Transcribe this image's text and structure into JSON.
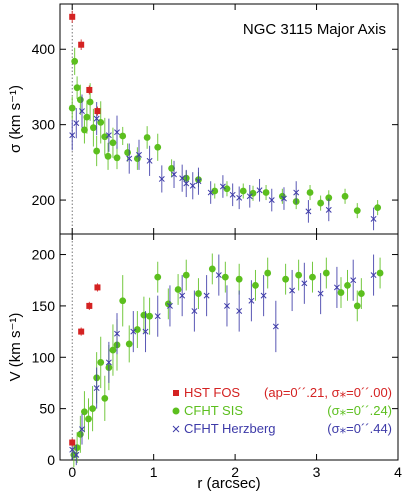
{
  "figure": {
    "colors": {
      "hst": "#d42222",
      "sis": "#5cbf1e",
      "herz": "#3d3aa8",
      "axis": "#000000",
      "dotted": "#555555"
    }
  },
  "chart_data": [
    {
      "type": "scatter",
      "panel": "top",
      "title": "NGC 3115 Major Axis",
      "xlabel": "",
      "ylabel": "σ (km s⁻¹)",
      "xlim": [
        -0.15,
        4
      ],
      "ylim": [
        155,
        460
      ],
      "yticks": [
        200,
        300,
        400
      ],
      "ytick_labels": [
        "200",
        "300",
        "400"
      ],
      "grid": false,
      "series": [
        {
          "name": "HST FOS",
          "marker": "square",
          "color": "#d42222",
          "points": [
            {
              "x": 0.0,
              "y": 443,
              "err": 8
            },
            {
              "x": 0.11,
              "y": 406,
              "err": 7
            },
            {
              "x": 0.21,
              "y": 346,
              "err": 6
            },
            {
              "x": 0.31,
              "y": 318,
              "err": 6
            }
          ]
        },
        {
          "name": "CFHT SIS",
          "marker": "circle",
          "color": "#5cbf1e",
          "points": [
            {
              "x": 0.0,
              "y": 322,
              "err": 15
            },
            {
              "x": 0.03,
              "y": 384,
              "err": 18
            },
            {
              "x": 0.06,
              "y": 349,
              "err": 15
            },
            {
              "x": 0.1,
              "y": 333,
              "err": 20
            },
            {
              "x": 0.15,
              "y": 293,
              "err": 18
            },
            {
              "x": 0.18,
              "y": 310,
              "err": 22
            },
            {
              "x": 0.22,
              "y": 330,
              "err": 25
            },
            {
              "x": 0.26,
              "y": 296,
              "err": 25
            },
            {
              "x": 0.3,
              "y": 265,
              "err": 20
            },
            {
              "x": 0.35,
              "y": 303,
              "err": 28
            },
            {
              "x": 0.4,
              "y": 284,
              "err": 25
            },
            {
              "x": 0.44,
              "y": 258,
              "err": 18
            },
            {
              "x": 0.5,
              "y": 276,
              "err": 20
            },
            {
              "x": 0.55,
              "y": 256,
              "err": 15
            },
            {
              "x": 0.62,
              "y": 285,
              "err": 12
            },
            {
              "x": 0.68,
              "y": 263,
              "err": 12
            },
            {
              "x": 0.8,
              "y": 255,
              "err": 15
            },
            {
              "x": 0.92,
              "y": 283,
              "err": 15
            },
            {
              "x": 1.05,
              "y": 270,
              "err": 18
            },
            {
              "x": 1.22,
              "y": 242,
              "err": 12
            },
            {
              "x": 1.4,
              "y": 229,
              "err": 10
            },
            {
              "x": 1.55,
              "y": 227,
              "err": 10
            },
            {
              "x": 1.75,
              "y": 212,
              "err": 10
            },
            {
              "x": 1.9,
              "y": 215,
              "err": 10
            },
            {
              "x": 2.1,
              "y": 212,
              "err": 10
            },
            {
              "x": 2.22,
              "y": 209,
              "err": 10
            },
            {
              "x": 2.38,
              "y": 210,
              "err": 10
            },
            {
              "x": 2.58,
              "y": 205,
              "err": 10
            },
            {
              "x": 2.75,
              "y": 198,
              "err": 10
            },
            {
              "x": 2.92,
              "y": 210,
              "err": 10
            },
            {
              "x": 3.05,
              "y": 196,
              "err": 10
            },
            {
              "x": 3.15,
              "y": 203,
              "err": 10
            },
            {
              "x": 3.35,
              "y": 205,
              "err": 10
            },
            {
              "x": 3.5,
              "y": 186,
              "err": 10
            },
            {
              "x": 3.75,
              "y": 190,
              "err": 10
            }
          ]
        },
        {
          "name": "CFHT Herzberg",
          "marker": "cross",
          "color": "#3d3aa8",
          "points": [
            {
              "x": 0.0,
              "y": 286,
              "err": 20
            },
            {
              "x": 0.05,
              "y": 302,
              "err": 20
            },
            {
              "x": 0.12,
              "y": 318,
              "err": 22
            },
            {
              "x": 0.3,
              "y": 308,
              "err": 22
            },
            {
              "x": 0.45,
              "y": 286,
              "err": 22
            },
            {
              "x": 0.55,
              "y": 290,
              "err": 22
            },
            {
              "x": 0.7,
              "y": 255,
              "err": 20
            },
            {
              "x": 0.82,
              "y": 260,
              "err": 20
            },
            {
              "x": 0.95,
              "y": 252,
              "err": 20
            },
            {
              "x": 1.1,
              "y": 228,
              "err": 18
            },
            {
              "x": 1.25,
              "y": 234,
              "err": 18
            },
            {
              "x": 1.35,
              "y": 229,
              "err": 18
            },
            {
              "x": 1.4,
              "y": 222,
              "err": 18
            },
            {
              "x": 1.48,
              "y": 219,
              "err": 18
            },
            {
              "x": 1.55,
              "y": 225,
              "err": 18
            },
            {
              "x": 1.7,
              "y": 210,
              "err": 15
            },
            {
              "x": 1.85,
              "y": 218,
              "err": 15
            },
            {
              "x": 1.97,
              "y": 207,
              "err": 15
            },
            {
              "x": 2.05,
              "y": 203,
              "err": 15
            },
            {
              "x": 2.18,
              "y": 205,
              "err": 15
            },
            {
              "x": 2.3,
              "y": 213,
              "err": 15
            },
            {
              "x": 2.45,
              "y": 200,
              "err": 15
            },
            {
              "x": 2.6,
              "y": 202,
              "err": 15
            },
            {
              "x": 2.75,
              "y": 210,
              "err": 15
            },
            {
              "x": 2.9,
              "y": 185,
              "err": 15
            },
            {
              "x": 3.15,
              "y": 187,
              "err": 15
            },
            {
              "x": 3.7,
              "y": 175,
              "err": 15
            }
          ]
        }
      ]
    },
    {
      "type": "scatter",
      "panel": "bottom",
      "title": "",
      "xlabel": "r (arcsec)",
      "ylabel": "V (km s⁻¹)",
      "xlim": [
        -0.15,
        4
      ],
      "ylim": [
        0,
        220
      ],
      "xticks": [
        0,
        1,
        2,
        3,
        4
      ],
      "xtick_labels": [
        "0",
        "1",
        "2",
        "3",
        "4"
      ],
      "yticks": [
        0,
        50,
        100,
        150,
        200
      ],
      "ytick_labels": [
        "0",
        "50",
        "100",
        "150",
        "200"
      ],
      "grid": false,
      "legend_position": "bottom-right",
      "legend": [
        {
          "name": "HST FOS",
          "params": "(ap=0´´.21, σ⁎=0´´.00)",
          "marker": "square",
          "color": "#d42222"
        },
        {
          "name": "CFHT SIS",
          "params": "(σ⁎=0´´.24)",
          "marker": "circle",
          "color": "#5cbf1e"
        },
        {
          "name": "CFHT Herzberg",
          "params": "(σ⁎=0´´.44)",
          "marker": "cross",
          "color": "#3d3aa8"
        }
      ],
      "series": [
        {
          "name": "HST FOS",
          "marker": "square",
          "color": "#d42222",
          "points": [
            {
              "x": 0.0,
              "y": 17,
              "err": 4
            },
            {
              "x": 0.11,
              "y": 125,
              "err": 4
            },
            {
              "x": 0.21,
              "y": 150,
              "err": 4
            },
            {
              "x": 0.31,
              "y": 168,
              "err": 4
            }
          ]
        },
        {
          "name": "CFHT SIS",
          "marker": "circle",
          "color": "#5cbf1e",
          "points": [
            {
              "x": 0.02,
              "y": 5,
              "err": 12
            },
            {
              "x": 0.06,
              "y": 12,
              "err": 15
            },
            {
              "x": 0.1,
              "y": 25,
              "err": 18
            },
            {
              "x": 0.15,
              "y": 47,
              "err": 20
            },
            {
              "x": 0.2,
              "y": 40,
              "err": 20
            },
            {
              "x": 0.25,
              "y": 50,
              "err": 22
            },
            {
              "x": 0.3,
              "y": 80,
              "err": 25
            },
            {
              "x": 0.35,
              "y": 95,
              "err": 25
            },
            {
              "x": 0.4,
              "y": 60,
              "err": 22
            },
            {
              "x": 0.45,
              "y": 90,
              "err": 22
            },
            {
              "x": 0.5,
              "y": 107,
              "err": 25
            },
            {
              "x": 0.55,
              "y": 112,
              "err": 25
            },
            {
              "x": 0.62,
              "y": 155,
              "err": 25
            },
            {
              "x": 0.7,
              "y": 113,
              "err": 18
            },
            {
              "x": 0.8,
              "y": 127,
              "err": 18
            },
            {
              "x": 0.88,
              "y": 141,
              "err": 18
            },
            {
              "x": 0.95,
              "y": 140,
              "err": 18
            },
            {
              "x": 1.05,
              "y": 178,
              "err": 15
            },
            {
              "x": 1.18,
              "y": 152,
              "err": 15
            },
            {
              "x": 1.3,
              "y": 166,
              "err": 15
            },
            {
              "x": 1.4,
              "y": 180,
              "err": 15
            },
            {
              "x": 1.55,
              "y": 162,
              "err": 15
            },
            {
              "x": 1.72,
              "y": 186,
              "err": 15
            },
            {
              "x": 1.88,
              "y": 178,
              "err": 15
            },
            {
              "x": 2.05,
              "y": 176,
              "err": 15
            },
            {
              "x": 2.25,
              "y": 170,
              "err": 15
            },
            {
              "x": 2.4,
              "y": 182,
              "err": 15
            },
            {
              "x": 2.62,
              "y": 176,
              "err": 15
            },
            {
              "x": 2.78,
              "y": 180,
              "err": 15
            },
            {
              "x": 2.95,
              "y": 178,
              "err": 15
            },
            {
              "x": 3.12,
              "y": 182,
              "err": 15
            },
            {
              "x": 3.3,
              "y": 163,
              "err": 15
            },
            {
              "x": 3.38,
              "y": 170,
              "err": 15
            },
            {
              "x": 3.5,
              "y": 150,
              "err": 15
            },
            {
              "x": 3.55,
              "y": 162,
              "err": 15
            },
            {
              "x": 3.78,
              "y": 182,
              "err": 15
            }
          ]
        },
        {
          "name": "CFHT Herzberg",
          "marker": "cross",
          "color": "#3d3aa8",
          "points": [
            {
              "x": 0.0,
              "y": 10,
              "err": 10
            },
            {
              "x": 0.05,
              "y": 5,
              "err": 10
            },
            {
              "x": 0.12,
              "y": 30,
              "err": 15
            },
            {
              "x": 0.3,
              "y": 70,
              "err": 20
            },
            {
              "x": 0.45,
              "y": 95,
              "err": 20
            },
            {
              "x": 0.55,
              "y": 123,
              "err": 20
            },
            {
              "x": 0.75,
              "y": 125,
              "err": 20
            },
            {
              "x": 0.9,
              "y": 125,
              "err": 20
            },
            {
              "x": 1.05,
              "y": 140,
              "err": 20
            },
            {
              "x": 1.2,
              "y": 150,
              "err": 20
            },
            {
              "x": 1.35,
              "y": 160,
              "err": 20
            },
            {
              "x": 1.5,
              "y": 145,
              "err": 20
            },
            {
              "x": 1.65,
              "y": 160,
              "err": 20
            },
            {
              "x": 1.8,
              "y": 180,
              "err": 20
            },
            {
              "x": 1.9,
              "y": 150,
              "err": 20
            },
            {
              "x": 2.05,
              "y": 145,
              "err": 20
            },
            {
              "x": 2.2,
              "y": 155,
              "err": 20
            },
            {
              "x": 2.35,
              "y": 160,
              "err": 20
            },
            {
              "x": 2.5,
              "y": 130,
              "err": 25
            },
            {
              "x": 2.7,
              "y": 165,
              "err": 20
            },
            {
              "x": 2.85,
              "y": 172,
              "err": 20
            },
            {
              "x": 3.05,
              "y": 162,
              "err": 20
            },
            {
              "x": 3.25,
              "y": 168,
              "err": 20
            },
            {
              "x": 3.45,
              "y": 175,
              "err": 20
            },
            {
              "x": 3.7,
              "y": 180,
              "err": 20
            }
          ]
        }
      ]
    }
  ]
}
